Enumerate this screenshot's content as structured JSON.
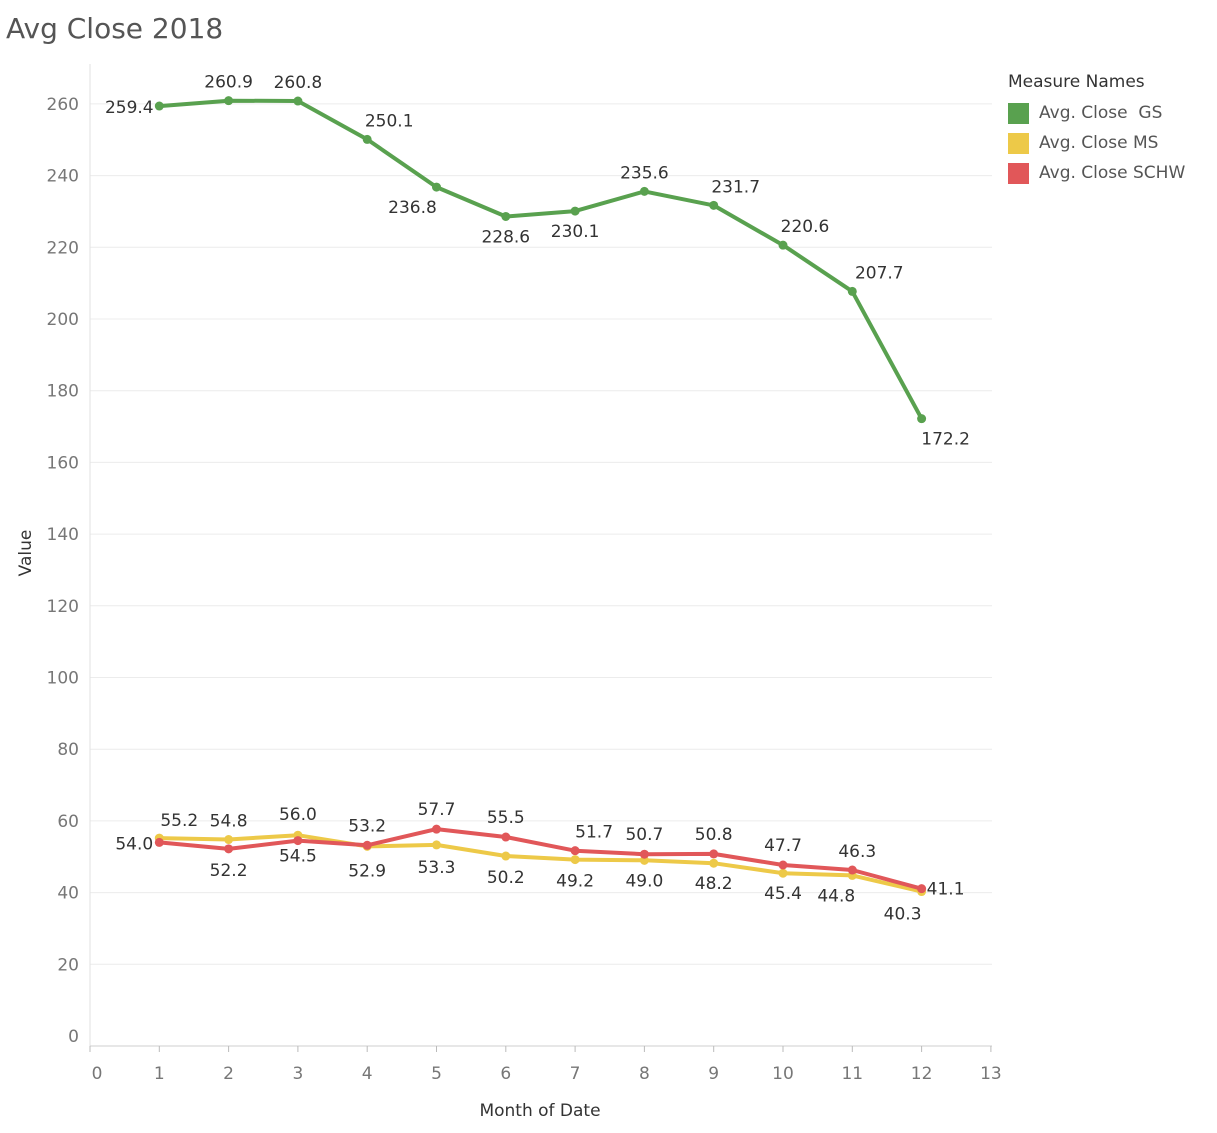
{
  "chart_data": {
    "type": "line",
    "title": "Avg Close 2018",
    "xlabel": "Month of Date",
    "ylabel": "Value",
    "xlim": [
      0,
      13
    ],
    "ylim": [
      0,
      270
    ],
    "x_ticks": [
      0,
      1,
      2,
      3,
      4,
      5,
      6,
      7,
      8,
      9,
      10,
      11,
      12,
      13
    ],
    "y_ticks": [
      0,
      20,
      40,
      60,
      80,
      100,
      120,
      140,
      160,
      180,
      200,
      220,
      240,
      260
    ],
    "grid": "horizontal",
    "legend_title": "Measure Names",
    "legend_position": "top-right",
    "x": [
      1,
      2,
      3,
      4,
      5,
      6,
      7,
      8,
      9,
      10,
      11,
      12
    ],
    "series": [
      {
        "name": "Avg. Close  GS",
        "color": "#59a14f",
        "values": [
          259.4,
          260.9,
          260.8,
          250.1,
          236.8,
          228.6,
          230.1,
          235.6,
          231.7,
          220.6,
          207.7,
          172.2
        ],
        "labels": [
          "259.4",
          "260.9",
          "260.8",
          "250.1",
          "236.8",
          "228.6",
          "230.1",
          "235.6",
          "231.7",
          "220.6",
          "207.7",
          "172.2"
        ]
      },
      {
        "name": "Avg. Close MS",
        "color": "#edc948",
        "values": [
          55.2,
          54.8,
          56.0,
          52.9,
          53.3,
          50.2,
          49.2,
          49.0,
          48.2,
          45.4,
          44.8,
          40.3
        ],
        "labels": [
          "55.2",
          "54.8",
          "56.0",
          "52.9",
          "53.3",
          "50.2",
          "49.2",
          "49.0",
          "48.2",
          "45.4",
          "44.8",
          "40.3"
        ]
      },
      {
        "name": "Avg. Close SCHW",
        "color": "#e15759",
        "values": [
          54.0,
          52.2,
          54.5,
          53.2,
          57.7,
          55.5,
          51.7,
          50.7,
          50.8,
          47.7,
          46.3,
          41.1
        ],
        "labels": [
          "54.0",
          "52.2",
          "54.5",
          "53.2",
          "57.7",
          "55.5",
          "51.7",
          "50.7",
          "50.8",
          "47.7",
          "46.3",
          "41.1"
        ]
      }
    ]
  }
}
